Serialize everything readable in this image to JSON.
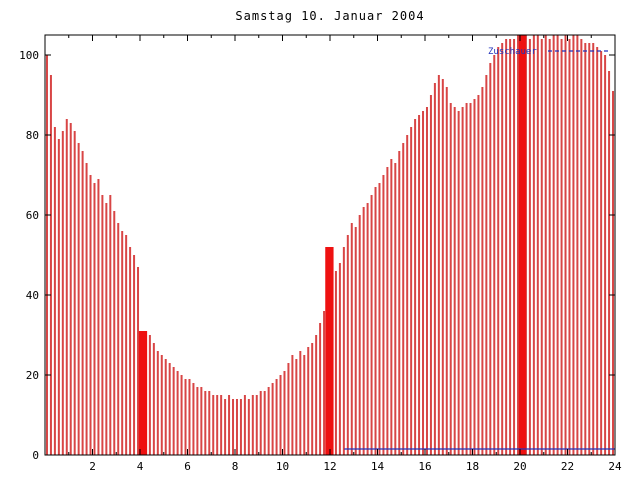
{
  "page": {
    "background": "#ffffff"
  },
  "chart_data": {
    "type": "bar",
    "title": "Samstag 10. Januar 2004",
    "x_unit": "hour of day",
    "x_range": [
      0,
      24
    ],
    "y_range": [
      0,
      105
    ],
    "x_ticks": [
      2,
      4,
      6,
      8,
      10,
      12,
      14,
      16,
      18,
      20,
      22,
      24
    ],
    "x_minor_step": 1,
    "y_ticks": [
      0,
      20,
      40,
      60,
      80,
      100
    ],
    "grid": false,
    "bar_interval_minutes": 10,
    "values": [
      100,
      95,
      82,
      79,
      81,
      84,
      83,
      81,
      78,
      76,
      73,
      70,
      68,
      69,
      65,
      63,
      65,
      61,
      58,
      56,
      55,
      52,
      50,
      47,
      31,
      30,
      30,
      28,
      26,
      25,
      24,
      23,
      22,
      21,
      20,
      19,
      19,
      18,
      17,
      17,
      16,
      16,
      15,
      15,
      15,
      14,
      15,
      14,
      14,
      14,
      15,
      14,
      15,
      15,
      16,
      16,
      17,
      18,
      19,
      20,
      21,
      23,
      25,
      24,
      26,
      25,
      27,
      28,
      30,
      33,
      36,
      52,
      50,
      46,
      48,
      52,
      55,
      58,
      57,
      60,
      62,
      63,
      65,
      67,
      68,
      70,
      72,
      74,
      73,
      76,
      78,
      80,
      82,
      84,
      85,
      86,
      87,
      90,
      93,
      95,
      94,
      92,
      88,
      87,
      86,
      87,
      88,
      88,
      89,
      90,
      92,
      95,
      98,
      100,
      102,
      103,
      104,
      104,
      104,
      105,
      105,
      105,
      104,
      105,
      105,
      104,
      105,
      104,
      105,
      105,
      104,
      105,
      104,
      105,
      105,
      104,
      103,
      103,
      103,
      102,
      101,
      100,
      96,
      91
    ],
    "solid_blocks": [
      {
        "x_start": 3.95,
        "x_end": 4.3,
        "height": 31
      },
      {
        "x_start": 11.8,
        "x_end": 12.15,
        "height": 52
      },
      {
        "x_start": 19.95,
        "x_end": 20.25,
        "height": 105
      }
    ],
    "blue_series": {
      "color": "#2233bb",
      "bottom_line": {
        "x_start": 12.6,
        "x_end": 24,
        "y": 1.5
      },
      "legend_line_y": 101
    },
    "legend": {
      "label": "Zuschauer",
      "position": "top-right",
      "color": "#2233bb",
      "line_style": "dashed"
    },
    "colors": {
      "bar": "#d84545",
      "bar_dense": "#ee1111",
      "axis": "#000000",
      "background": "#ffffff",
      "title": "#000000"
    }
  }
}
